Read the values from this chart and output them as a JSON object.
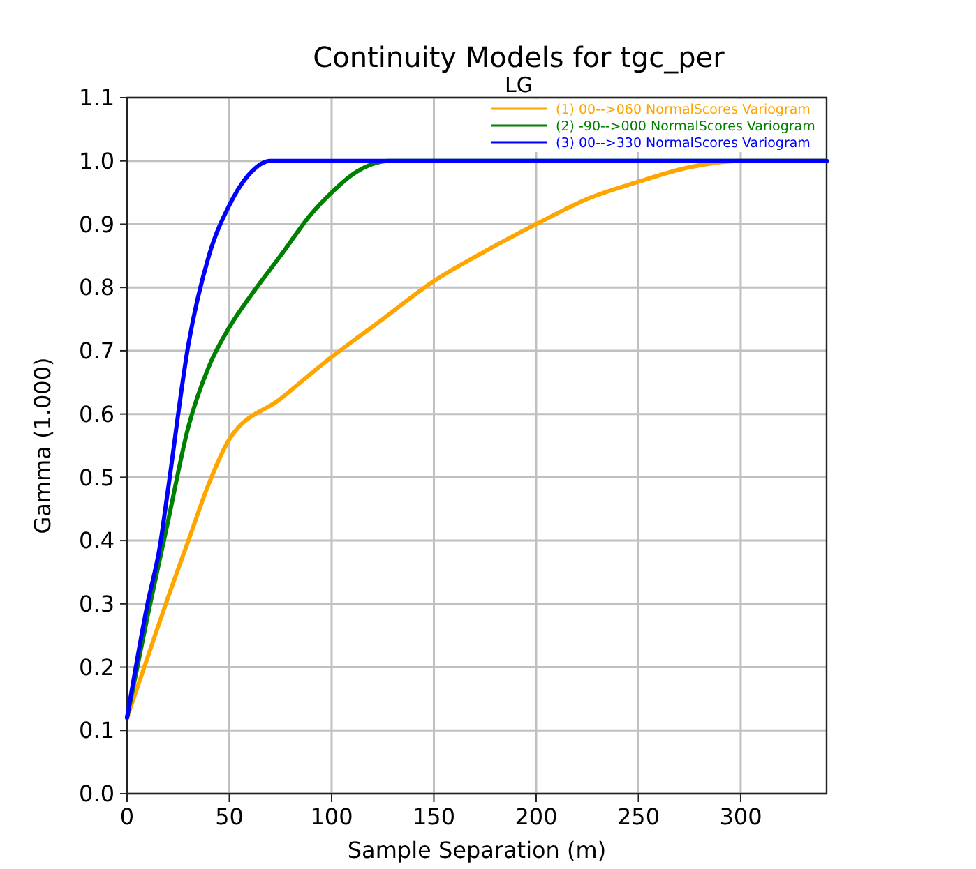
{
  "chart_data": {
    "type": "line",
    "title": "Continuity Models for tgc_per",
    "subtitle": "LG",
    "xlabel": "Sample Separation (m)",
    "ylabel": "Gamma (1.000)",
    "xlim": [
      0,
      342
    ],
    "ylim": [
      0,
      1.1
    ],
    "xticks": [
      0,
      50,
      100,
      150,
      200,
      250,
      300
    ],
    "yticks": [
      {
        "value": 0,
        "label": "0.0"
      },
      {
        "value": 0.1,
        "label": "0.1"
      },
      {
        "value": 0.2,
        "label": "0.2"
      },
      {
        "value": 0.3,
        "label": "0.3"
      },
      {
        "value": 0.4,
        "label": "0.4"
      },
      {
        "value": 0.5,
        "label": "0.5"
      },
      {
        "value": 0.6,
        "label": "0.6"
      },
      {
        "value": 0.7,
        "label": "0.7"
      },
      {
        "value": 0.8,
        "label": "0.8"
      },
      {
        "value": 0.9,
        "label": "0.9"
      },
      {
        "value": 1.0,
        "label": "1.0"
      },
      {
        "value": 1.1,
        "label": "1.1"
      }
    ],
    "grid": true,
    "legend": "top right",
    "marker": "none",
    "line_style": "solid",
    "series": [
      {
        "name": "(1) 00-->060 NormalScores Variogram",
        "color": "#ffa500",
        "x": [
          0,
          10,
          20,
          30,
          40,
          50,
          75,
          100,
          125,
          150,
          175,
          200,
          225,
          250,
          275,
          300,
          342
        ],
        "values": [
          0.12,
          0.215,
          0.31,
          0.4,
          0.49,
          0.56,
          0.624,
          0.69,
          0.75,
          0.81,
          0.857,
          0.9,
          0.94,
          0.967,
          0.99,
          1.0,
          1.0
        ]
      },
      {
        "name": "(2) -90-->000 NormalScores Variogram",
        "color": "#008000",
        "x": [
          0,
          10,
          20,
          30,
          40,
          50,
          60,
          75,
          90,
          100,
          110,
          120,
          128,
          342
        ],
        "values": [
          0.12,
          0.28,
          0.43,
          0.58,
          0.675,
          0.737,
          0.785,
          0.85,
          0.916,
          0.95,
          0.978,
          0.995,
          1.0,
          1.0
        ]
      },
      {
        "name": "(3) 00-->330 NormalScores Variogram",
        "color": "#0000ff",
        "x": [
          0,
          10,
          16,
          20,
          30,
          40,
          50,
          60,
          70,
          342
        ],
        "values": [
          0.12,
          0.3,
          0.39,
          0.48,
          0.71,
          0.85,
          0.93,
          0.98,
          1.0,
          1.0
        ]
      }
    ]
  }
}
